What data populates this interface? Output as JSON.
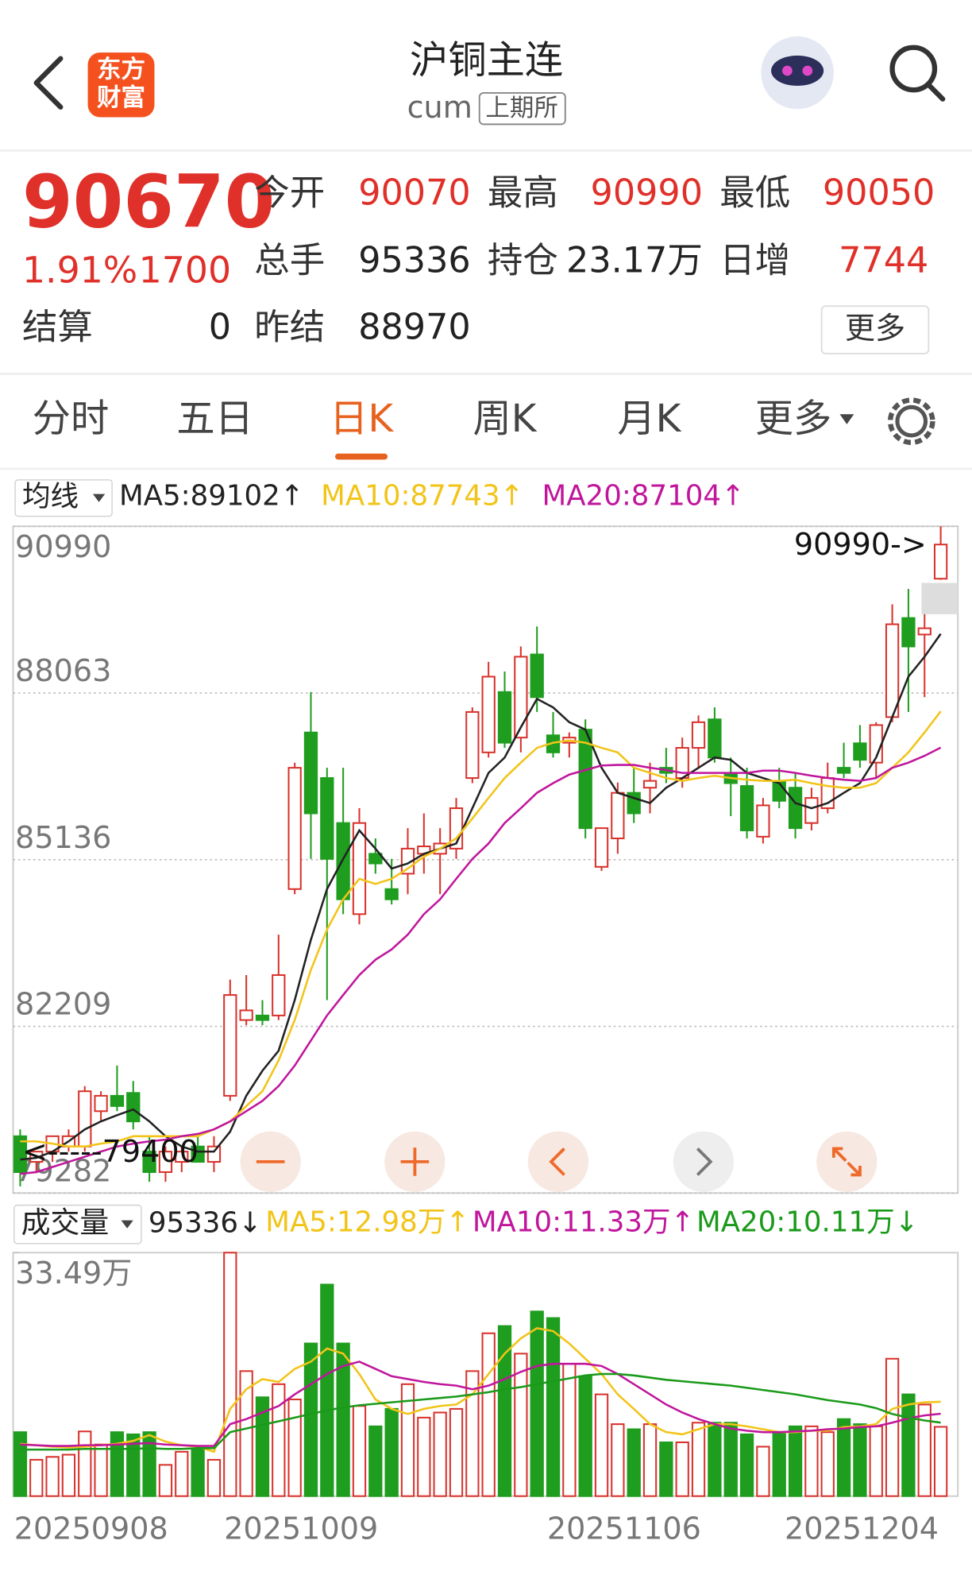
{
  "header": {
    "title": "沪铜主连",
    "code": "cum",
    "exchange": "上期所",
    "logo_lines": [
      "东方",
      "财富"
    ]
  },
  "quote": {
    "price": 90670,
    "change_pct": "1.91%",
    "change": 1700,
    "settle_label": "结算",
    "settle": 0,
    "open": {
      "label": "今开",
      "value": 90070
    },
    "high": {
      "label": "最高",
      "value": 90990
    },
    "low": {
      "label": "最低",
      "value": 90050
    },
    "volume": {
      "label": "总手",
      "value": 95336
    },
    "open_interest": {
      "label": "持仓",
      "value": "23.17万"
    },
    "daily_increase": {
      "label": "日增",
      "value": 7744
    },
    "prev_settle": {
      "label": "昨结",
      "value": 88970
    },
    "more": "更多"
  },
  "tabs": {
    "items": [
      "分时",
      "五日",
      "日K",
      "周K",
      "月K",
      "更多"
    ],
    "active": 2
  },
  "chart_data": [
    {
      "type": "candlestick",
      "selector": "均线",
      "ylim": [
        79282,
        90990
      ],
      "yticks": [
        90990,
        88063,
        85136,
        82209,
        79282
      ],
      "grid": true,
      "up_color": "#d8322c",
      "down_color": "#1f9d1f",
      "max_label": "90990->",
      "min_label": "<-----79400",
      "open": [
        80280,
        79830,
        80010,
        80100,
        80100,
        80720,
        80990,
        81040,
        80010,
        79650,
        79830,
        80100,
        79830,
        80990,
        82320,
        82400,
        82400,
        84620,
        87370,
        86570,
        85780,
        84180,
        85240,
        84620,
        84890,
        85240,
        85240,
        85330,
        86570,
        87020,
        88080,
        87280,
        88740,
        87320,
        87190,
        87420,
        85010,
        85510,
        86310,
        86400,
        86750,
        86570,
        87100,
        87600,
        86660,
        86430,
        85540,
        86520,
        86400,
        85780,
        86040,
        86750,
        87180,
        86840,
        87640,
        89380,
        89090,
        90070
      ],
      "high": [
        80400,
        80010,
        80280,
        80400,
        81160,
        81070,
        81520,
        81250,
        80280,
        80100,
        80100,
        80280,
        80280,
        83030,
        83110,
        82670,
        83820,
        86840,
        88080,
        86750,
        86750,
        86040,
        85510,
        85150,
        85690,
        85950,
        85690,
        86220,
        87810,
        88610,
        88440,
        88880,
        89230,
        87730,
        87370,
        87600,
        85690,
        86490,
        86750,
        86840,
        87100,
        87280,
        87670,
        87810,
        86930,
        86750,
        86220,
        86750,
        86660,
        86400,
        86840,
        87190,
        87500,
        87550,
        89620,
        89890,
        89620,
        90990
      ],
      "low": [
        79400,
        79650,
        79830,
        80010,
        80010,
        80540,
        80720,
        80400,
        79480,
        79480,
        79650,
        79830,
        79650,
        80900,
        82230,
        82230,
        82320,
        84530,
        85150,
        82670,
        84180,
        84000,
        84890,
        84350,
        84530,
        84890,
        84530,
        85150,
        86480,
        86930,
        87100,
        87020,
        87730,
        86930,
        86930,
        85510,
        84940,
        85240,
        85780,
        85950,
        86480,
        86400,
        86750,
        86840,
        85900,
        85510,
        85420,
        86040,
        85510,
        85650,
        85950,
        86570,
        86750,
        86570,
        87550,
        87730,
        87990,
        90050
      ],
      "close": [
        79650,
        80010,
        80280,
        80280,
        81070,
        80990,
        80810,
        80540,
        79650,
        80010,
        80010,
        79830,
        80100,
        82760,
        82490,
        82320,
        83110,
        86750,
        85950,
        85150,
        84440,
        85780,
        85070,
        84440,
        85330,
        85370,
        85420,
        86040,
        87730,
        88350,
        87190,
        88700,
        87990,
        87020,
        87280,
        85690,
        85690,
        86310,
        85950,
        86520,
        86660,
        87100,
        87550,
        86930,
        86480,
        85650,
        86090,
        86170,
        85690,
        86220,
        86570,
        86660,
        86890,
        87500,
        89270,
        88880,
        89200,
        90670
      ],
      "lines": [
        {
          "label": "MA5:89102↑",
          "color": "#222222",
          "values": [
            79870,
            79900,
            80010,
            80190,
            80400,
            80540,
            80650,
            80750,
            80540,
            80280,
            80100,
            80010,
            80010,
            80360,
            80990,
            81430,
            81780,
            82670,
            83730,
            84620,
            85150,
            85650,
            85330,
            84980,
            85070,
            85240,
            85330,
            85420,
            86040,
            86660,
            86930,
            87460,
            87960,
            87810,
            87550,
            87420,
            86750,
            86310,
            86220,
            86130,
            86400,
            86570,
            86750,
            86930,
            86890,
            86660,
            86570,
            86480,
            86130,
            86040,
            86130,
            86310,
            86480,
            86930,
            87640,
            88350,
            88700,
            89102
          ]
        },
        {
          "label": "MA10:87743↑",
          "color": "#f2c418",
          "values": [
            80190,
            80190,
            80150,
            80100,
            80100,
            80150,
            80190,
            80280,
            80280,
            80280,
            80280,
            80280,
            80400,
            80540,
            80810,
            81070,
            81610,
            82320,
            83200,
            83910,
            84440,
            84800,
            84710,
            84800,
            84980,
            85190,
            85330,
            85510,
            85860,
            86220,
            86570,
            86840,
            87100,
            87190,
            87230,
            87190,
            87100,
            87020,
            86750,
            86660,
            86570,
            86520,
            86570,
            86610,
            86570,
            86540,
            86520,
            86520,
            86540,
            86480,
            86430,
            86400,
            86400,
            86480,
            86750,
            87020,
            87370,
            87743
          ]
        },
        {
          "label": "MA20:87104↑",
          "color": "#c0169c",
          "values": [
            79620,
            79650,
            79740,
            79830,
            79920,
            80010,
            80100,
            80150,
            80190,
            80220,
            80280,
            80320,
            80400,
            80540,
            80720,
            80900,
            81160,
            81520,
            81960,
            82400,
            82760,
            83110,
            83380,
            83560,
            83820,
            84180,
            84440,
            84800,
            85150,
            85420,
            85780,
            86040,
            86310,
            86480,
            86630,
            86710,
            86790,
            86800,
            86800,
            86750,
            86710,
            86660,
            86660,
            86660,
            86660,
            86660,
            86700,
            86700,
            86660,
            86610,
            86570,
            86540,
            86520,
            86570,
            86750,
            86840,
            86960,
            87104
          ]
        }
      ]
    },
    {
      "type": "bar",
      "selector": "成交量",
      "last_label": "95336↓",
      "ylim": [
        0,
        33.49
      ],
      "yticks": [
        {
          "value": 33.49,
          "label": "33.49万"
        }
      ],
      "categories": [
        "20250908",
        null,
        null,
        null,
        null,
        null,
        null,
        null,
        null,
        null,
        null,
        null,
        null,
        "20251009",
        null,
        null,
        null,
        null,
        null,
        null,
        null,
        null,
        null,
        null,
        null,
        null,
        null,
        null,
        null,
        null,
        null,
        null,
        null,
        "20251106",
        null,
        null,
        null,
        null,
        null,
        null,
        null,
        null,
        null,
        null,
        null,
        null,
        null,
        null,
        null,
        null,
        null,
        null,
        null,
        "20251204",
        null,
        null,
        null,
        null
      ],
      "values": [
        8.8,
        5.0,
        5.4,
        5.7,
        8.9,
        7.1,
        8.8,
        8.5,
        8.8,
        4.3,
        6.1,
        6.4,
        5.0,
        33.49,
        17.2,
        13.6,
        15.4,
        13.3,
        21.0,
        29.1,
        21.0,
        12.4,
        9.6,
        12.0,
        15.4,
        10.8,
        11.5,
        12.0,
        17.2,
        22.4,
        23.4,
        19.6,
        25.4,
        24.5,
        18.2,
        16.5,
        14.0,
        9.9,
        9.2,
        9.9,
        7.4,
        7.4,
        10.1,
        10.1,
        10.1,
        8.5,
        6.8,
        8.8,
        9.6,
        9.6,
        8.8,
        10.6,
        9.9,
        9.6,
        18.9,
        14.0,
        12.6,
        9.53
      ],
      "lines": [
        {
          "label": "MA5:12.98万↑",
          "color": "#f2c418",
          "values": [
            7.2,
            7.0,
            6.8,
            6.7,
            6.8,
            7.0,
            7.2,
            7.6,
            8.4,
            7.5,
            7.0,
            6.8,
            6.1,
            12.0,
            14.7,
            16.1,
            15.7,
            17.5,
            18.5,
            20.3,
            19.6,
            16.8,
            13.3,
            12.0,
            11.3,
            12.0,
            12.4,
            12.6,
            14.0,
            16.8,
            19.6,
            21.7,
            23.1,
            22.7,
            21.0,
            18.9,
            16.8,
            14.0,
            12.0,
            9.9,
            8.8,
            8.5,
            9.2,
            9.9,
            9.9,
            9.6,
            9.2,
            8.8,
            8.8,
            9.0,
            9.0,
            9.5,
            9.6,
            9.9,
            12.0,
            12.6,
            12.9,
            12.98
          ]
        },
        {
          "label": "MA10:11.33万↑",
          "color": "#c0169c",
          "values": [
            7.1,
            7.0,
            6.9,
            6.9,
            7.0,
            7.0,
            7.1,
            7.2,
            7.3,
            7.1,
            7.0,
            6.9,
            6.9,
            9.9,
            10.6,
            11.5,
            12.4,
            14.0,
            15.4,
            16.8,
            17.9,
            18.5,
            17.5,
            16.5,
            16.1,
            15.7,
            15.4,
            15.2,
            14.7,
            15.2,
            16.1,
            17.1,
            17.9,
            18.2,
            18.2,
            18.2,
            17.9,
            16.8,
            15.4,
            14.0,
            12.6,
            11.5,
            10.6,
            9.9,
            9.3,
            9.0,
            8.8,
            8.8,
            8.9,
            9.0,
            9.2,
            9.3,
            9.5,
            9.6,
            10.1,
            10.7,
            11.1,
            11.33
          ]
        },
        {
          "label": "MA20:10.11万↓",
          "color": "#1a9a1a",
          "values": [
            6.4,
            6.4,
            6.4,
            6.4,
            6.5,
            6.5,
            6.5,
            6.5,
            6.6,
            6.5,
            6.5,
            6.6,
            6.6,
            8.8,
            9.3,
            9.8,
            10.3,
            10.8,
            11.3,
            11.8,
            12.2,
            12.5,
            12.7,
            12.9,
            13.1,
            13.3,
            13.5,
            13.7,
            14.0,
            14.3,
            14.7,
            15.0,
            15.4,
            15.8,
            16.2,
            16.6,
            16.8,
            16.8,
            16.6,
            16.3,
            16.0,
            15.8,
            15.6,
            15.4,
            15.2,
            14.9,
            14.6,
            14.3,
            14.0,
            13.6,
            13.2,
            12.9,
            12.6,
            12.1,
            11.3,
            10.8,
            10.4,
            10.11
          ]
        }
      ]
    }
  ]
}
